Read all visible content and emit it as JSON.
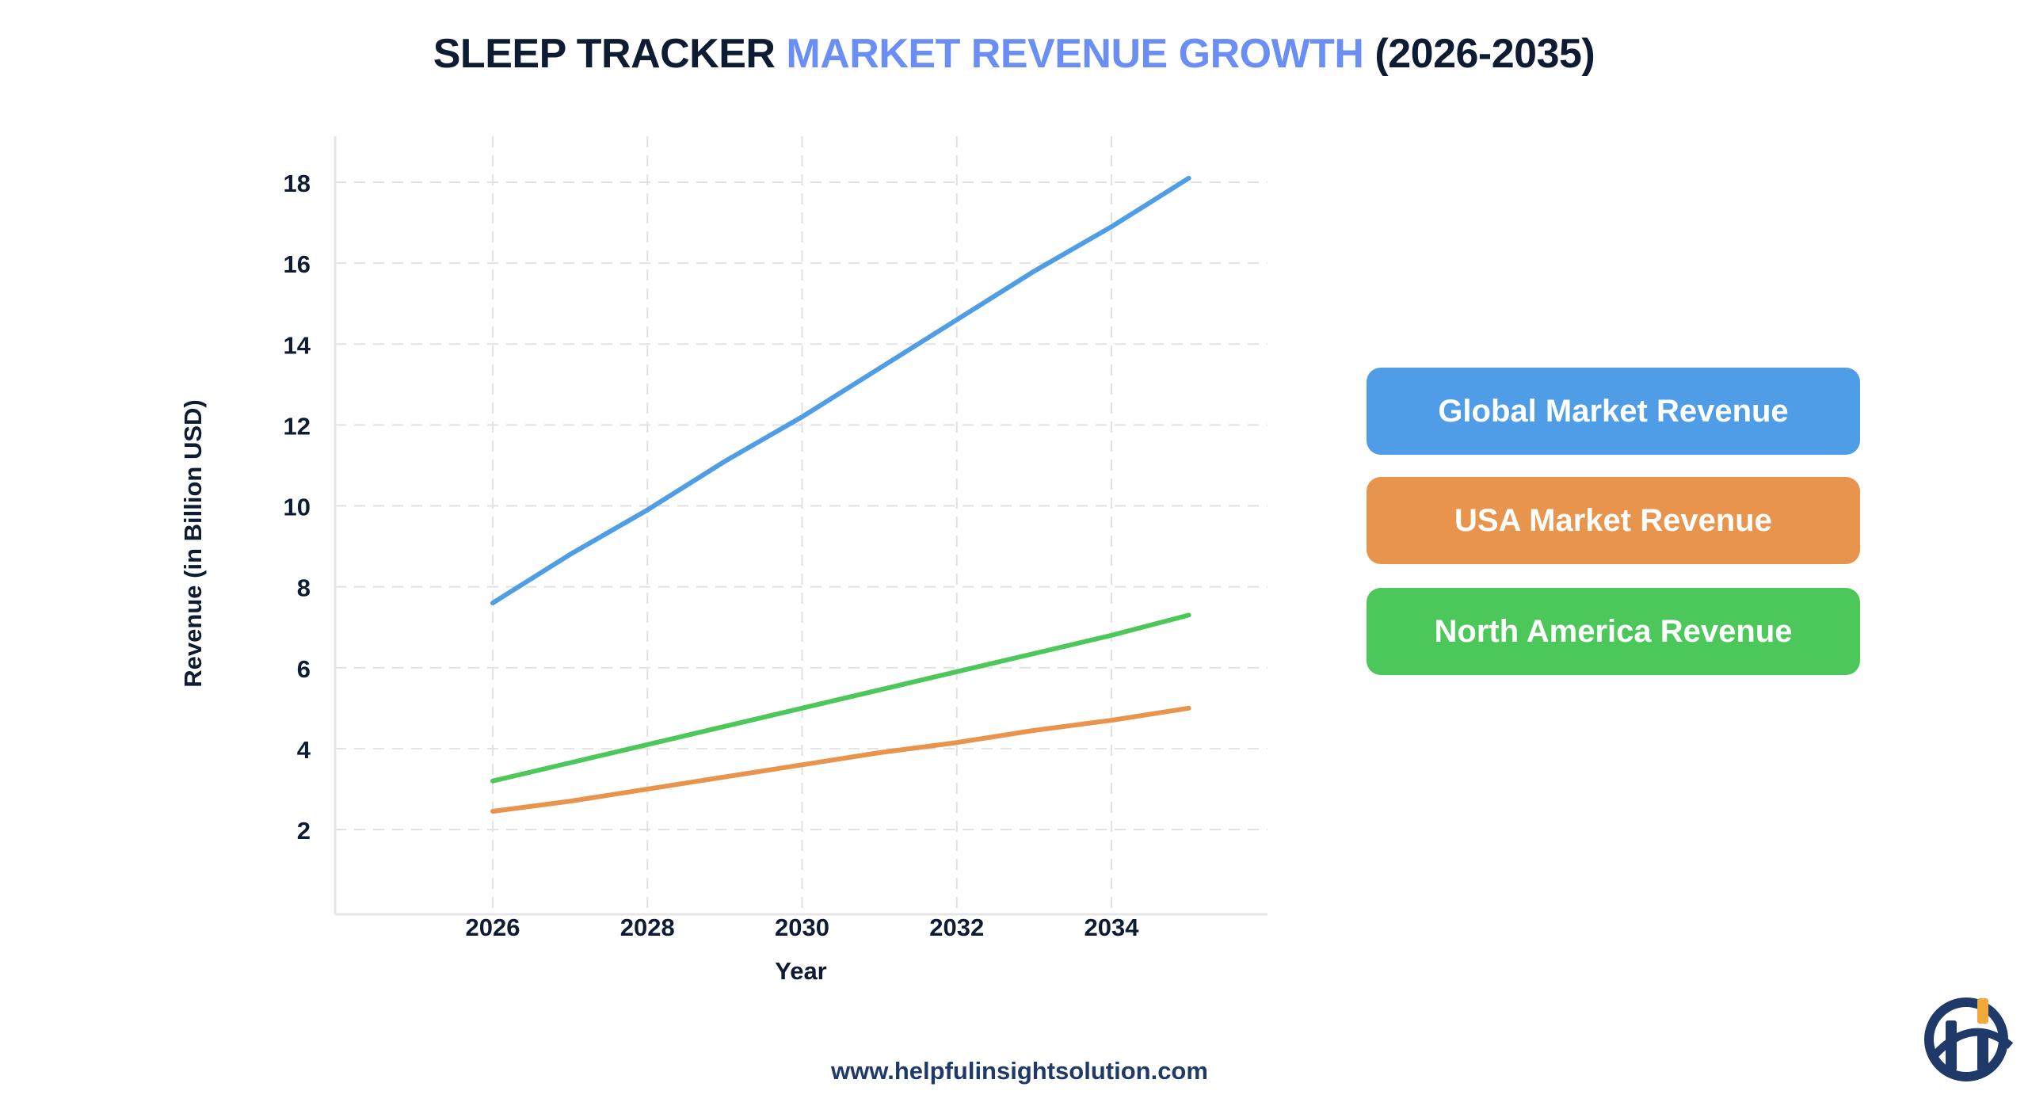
{
  "title": {
    "part1": "SLEEP TRACKER ",
    "part2": "MARKET REVENUE GROWTH",
    "part3": " (2026-2035)"
  },
  "website": "www.helpfulinsightsolution.com",
  "logo": {
    "text": "hi",
    "colors": [
      "#1f3a68",
      "#f0a93a"
    ]
  },
  "chart_data": {
    "type": "line",
    "xlabel": "Year",
    "ylabel": "Revenue (in Billion USD)",
    "x": [
      2026,
      2027,
      2028,
      2029,
      2030,
      2031,
      2032,
      2033,
      2034,
      2035
    ],
    "xticks": [
      2026,
      2028,
      2030,
      2032,
      2034
    ],
    "yticks": [
      2,
      4,
      6,
      8,
      10,
      12,
      14,
      16,
      18
    ],
    "xlim": [
      2024,
      2036
    ],
    "ylim": [
      0,
      19.2
    ],
    "grid": true,
    "legend_position": "right",
    "series": [
      {
        "name": "Global Market Revenue",
        "color": "#4e9de6",
        "values": [
          7.6,
          8.8,
          9.9,
          11.1,
          12.2,
          13.4,
          14.6,
          15.8,
          16.9,
          18.1
        ]
      },
      {
        "name": "USA Market Revenue",
        "color": "#e8944d",
        "values": [
          2.45,
          2.7,
          3.0,
          3.3,
          3.6,
          3.9,
          4.15,
          4.45,
          4.7,
          5.0
        ]
      },
      {
        "name": "North America Revenue",
        "color": "#4cc85a",
        "values": [
          3.2,
          3.65,
          4.1,
          4.55,
          5.0,
          5.45,
          5.9,
          6.35,
          6.8,
          7.3
        ]
      }
    ]
  }
}
